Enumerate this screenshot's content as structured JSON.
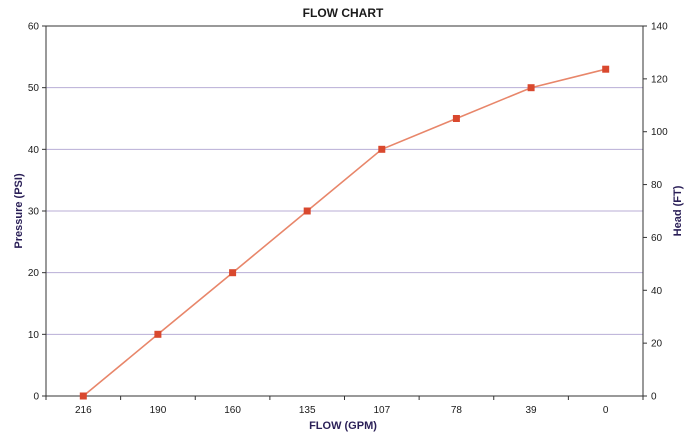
{
  "chart_data": {
    "type": "line",
    "title": "FLOW CHART",
    "xlabel": "FLOW (GPM)",
    "ylabel": "Pressure (PSI)",
    "y2label": "Head (FT)",
    "categories": [
      "216",
      "190",
      "160",
      "135",
      "107",
      "78",
      "39",
      "0"
    ],
    "ylim": [
      0,
      60
    ],
    "yticks": [
      0,
      10,
      20,
      30,
      40,
      50,
      60
    ],
    "y2lim": [
      0,
      140
    ],
    "y2ticks": [
      0,
      20,
      40,
      60,
      80,
      100,
      120,
      140
    ],
    "points": [
      {
        "x": 216,
        "y": 0
      },
      {
        "x": 190,
        "y": 10
      },
      {
        "x": 160,
        "y": 20
      },
      {
        "x": 135,
        "y": 30
      },
      {
        "x": 107,
        "y": 40
      },
      {
        "x": 78,
        "y": 45
      },
      {
        "x": 39,
        "y": 50
      },
      {
        "x": 0,
        "y": 53
      }
    ],
    "grid": "horizontal",
    "line_color": "#e8866a",
    "marker_color": "#d9482e",
    "grid_color": "#b8aed6"
  }
}
